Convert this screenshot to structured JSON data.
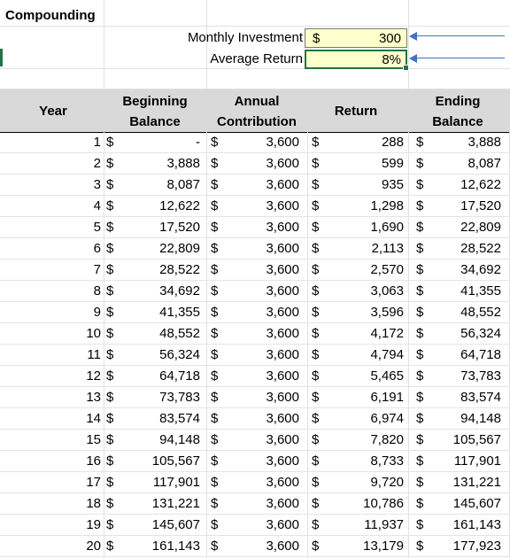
{
  "sheet": {
    "title": "Compounding",
    "inputs": [
      {
        "label": "Monthly Investment",
        "currency": "$",
        "value": "300"
      },
      {
        "label": "Average Return",
        "currency": "",
        "value": "8%"
      }
    ],
    "headers": {
      "year": "Year",
      "beginning": [
        "Beginning",
        "Balance"
      ],
      "contribution": [
        "Annual",
        "Contribution"
      ],
      "return": "Return",
      "ending": [
        "Ending",
        "Balance"
      ]
    },
    "currency_symbol": "$",
    "rows": [
      [
        "1",
        "-",
        "3,600",
        "288",
        "3,888"
      ],
      [
        "2",
        "3,888",
        "3,600",
        "599",
        "8,087"
      ],
      [
        "3",
        "8,087",
        "3,600",
        "935",
        "12,622"
      ],
      [
        "4",
        "12,622",
        "3,600",
        "1,298",
        "17,520"
      ],
      [
        "5",
        "17,520",
        "3,600",
        "1,690",
        "22,809"
      ],
      [
        "6",
        "22,809",
        "3,600",
        "2,113",
        "28,522"
      ],
      [
        "7",
        "28,522",
        "3,600",
        "2,570",
        "34,692"
      ],
      [
        "8",
        "34,692",
        "3,600",
        "3,063",
        "41,355"
      ],
      [
        "9",
        "41,355",
        "3,600",
        "3,596",
        "48,552"
      ],
      [
        "10",
        "48,552",
        "3,600",
        "4,172",
        "56,324"
      ],
      [
        "11",
        "56,324",
        "3,600",
        "4,794",
        "64,718"
      ],
      [
        "12",
        "64,718",
        "3,600",
        "5,465",
        "73,783"
      ],
      [
        "13",
        "73,783",
        "3,600",
        "6,191",
        "83,574"
      ],
      [
        "14",
        "83,574",
        "3,600",
        "6,974",
        "94,148"
      ],
      [
        "15",
        "94,148",
        "3,600",
        "7,820",
        "105,567"
      ],
      [
        "16",
        "105,567",
        "3,600",
        "8,733",
        "117,901"
      ],
      [
        "17",
        "117,901",
        "3,600",
        "9,720",
        "131,221"
      ],
      [
        "18",
        "131,221",
        "3,600",
        "10,786",
        "145,607"
      ],
      [
        "19",
        "145,607",
        "3,600",
        "11,937",
        "161,143"
      ],
      [
        "20",
        "161,143",
        "3,600",
        "13,179",
        "177,923"
      ]
    ]
  }
}
